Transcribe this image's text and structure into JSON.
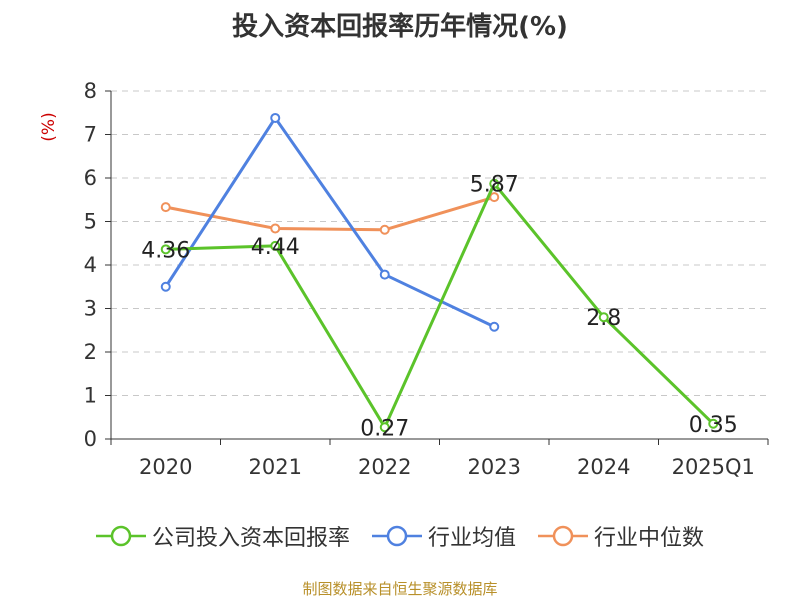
{
  "chart_data": {
    "type": "line",
    "title": "投入资本回报率历年情况(%)",
    "ylabel": "(%)",
    "xlabel": "",
    "categories": [
      "2020",
      "2021",
      "2022",
      "2023",
      "2024",
      "2025Q1"
    ],
    "ylim": [
      0,
      8
    ],
    "yticks": [
      0,
      1,
      2,
      3,
      4,
      5,
      6,
      7,
      8
    ],
    "grid": true,
    "legend_position": "bottom",
    "series": [
      {
        "name": "公司投入资本回报率",
        "color": "#5bc32a",
        "values": [
          4.36,
          4.44,
          0.27,
          5.87,
          2.8,
          0.35
        ],
        "labels": [
          "4.36",
          "4.44",
          "0.27",
          "5.87",
          "2.8",
          "0.35"
        ]
      },
      {
        "name": "行业均值",
        "color": "#4f81e0",
        "values": [
          3.5,
          7.38,
          3.78,
          2.58,
          null,
          null
        ]
      },
      {
        "name": "行业中位数",
        "color": "#f0915a",
        "values": [
          5.33,
          4.84,
          4.81,
          5.56,
          null,
          null
        ]
      }
    ]
  },
  "source": "制图数据来自恒生聚源数据库"
}
